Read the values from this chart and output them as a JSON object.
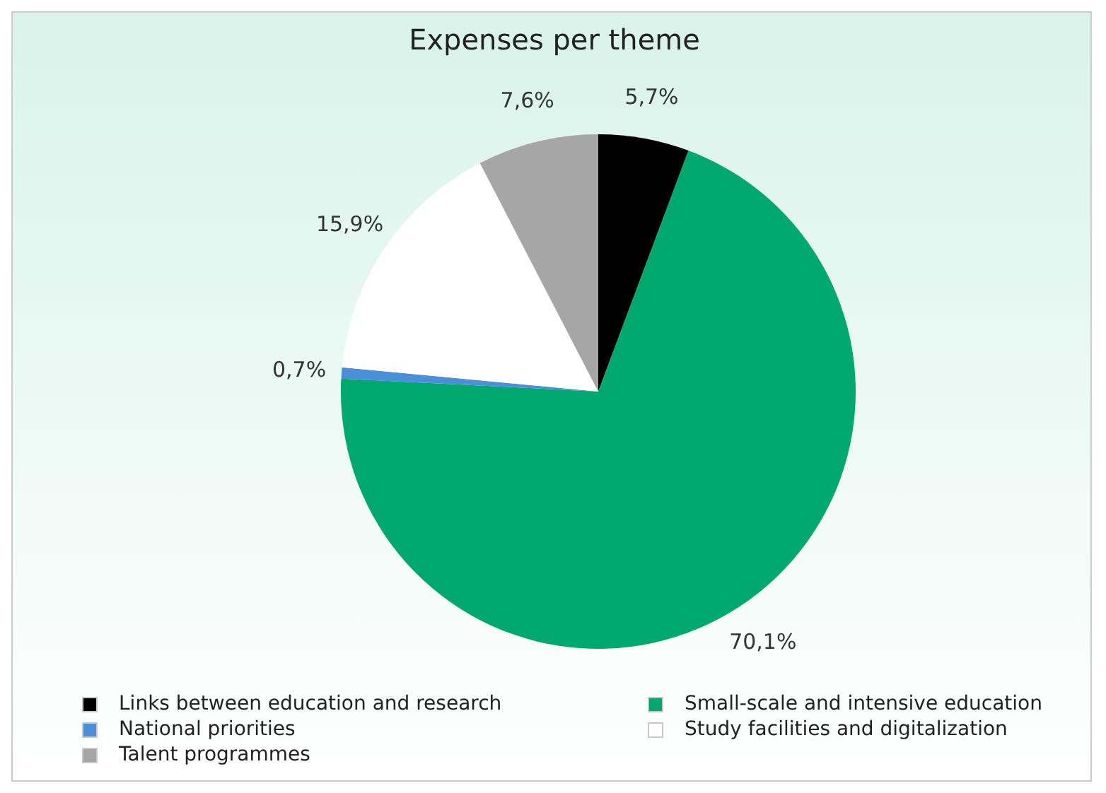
{
  "chart_data": {
    "type": "pie",
    "title": "Expenses per theme",
    "categories": [
      "Links between education and research",
      "Small-scale and intensive education",
      "National priorities",
      "Study facilities and digitalization",
      "Talent programmes"
    ],
    "values": [
      5.7,
      70.1,
      0.7,
      15.9,
      7.6
    ],
    "colors": [
      "#000000",
      "#00a870",
      "#4a8fd8",
      "#ffffff",
      "#a6a6a6"
    ],
    "value_labels": [
      "5,7%",
      "70,1%",
      "0,7%",
      "15,9%",
      "7,6%"
    ],
    "legend": "bottom"
  }
}
